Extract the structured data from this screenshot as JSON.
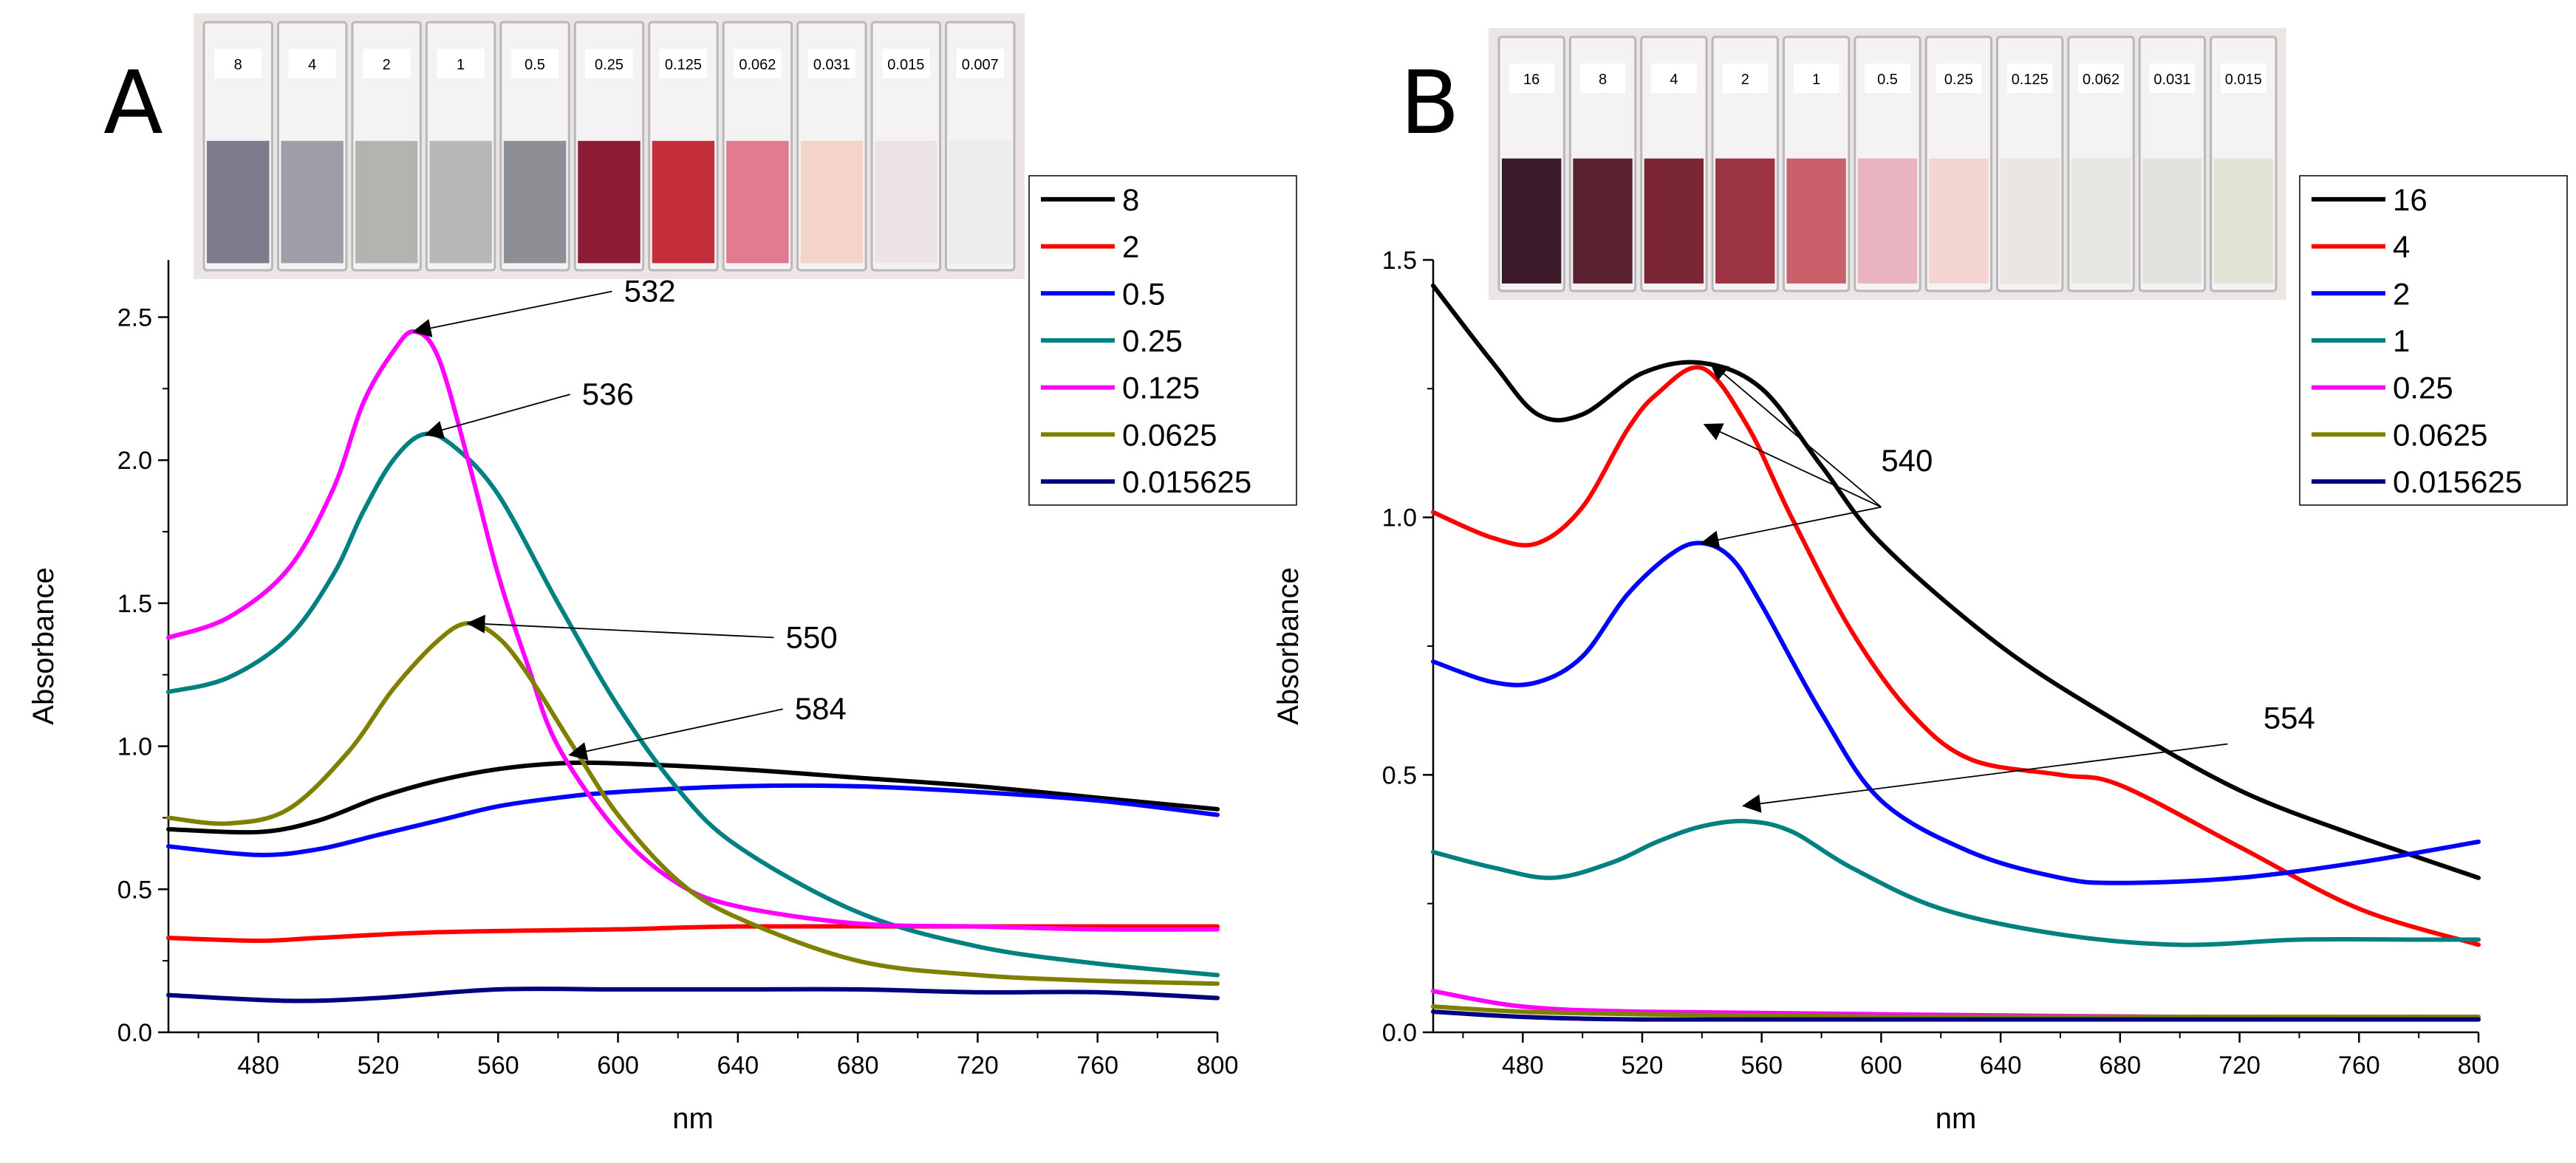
{
  "chart_data": [
    {
      "type": "line",
      "panel": "A",
      "xlabel": "nm",
      "ylabel": "Absorbance",
      "xlim": [
        450,
        800
      ],
      "ylim": [
        0,
        2.7
      ],
      "xticks": [
        480,
        520,
        560,
        600,
        640,
        680,
        720,
        760,
        800
      ],
      "yticks": [
        0.0,
        0.5,
        1.0,
        1.5,
        2.0,
        2.5
      ],
      "xtick_labels": [
        "480",
        "520",
        "560",
        "600",
        "640",
        "680",
        "720",
        "760",
        "800"
      ],
      "ytick_labels": [
        "0.0",
        "0.5",
        "1.0",
        "1.5",
        "2.0",
        "2.5"
      ],
      "cuvette_labels": [
        "8",
        "4",
        "2",
        "1",
        "0.5",
        "0.25",
        "0.125",
        "0.062",
        "0.031",
        "0.015",
        "0.007"
      ],
      "cuvette_colors": [
        "#7d7c8c",
        "#9e9ea6",
        "#b2b4b0",
        "#b6b8b6",
        "#8e8f94",
        "#8c1c34",
        "#c42d3a",
        "#e07b90",
        "#f3d3cc",
        "#ece4e4",
        "#ececec"
      ],
      "series": [
        {
          "name": "8",
          "color": "#000000",
          "x": [
            450,
            480,
            500,
            520,
            540,
            560,
            580,
            600,
            640,
            680,
            720,
            760,
            800
          ],
          "values": [
            0.71,
            0.7,
            0.74,
            0.82,
            0.88,
            0.92,
            0.94,
            0.94,
            0.92,
            0.89,
            0.86,
            0.82,
            0.78
          ]
        },
        {
          "name": "2",
          "color": "#ff0000",
          "x": [
            450,
            480,
            500,
            540,
            600,
            640,
            700,
            760,
            800
          ],
          "values": [
            0.33,
            0.32,
            0.33,
            0.35,
            0.36,
            0.37,
            0.37,
            0.37,
            0.37
          ]
        },
        {
          "name": "0.5",
          "color": "#0000ff",
          "x": [
            450,
            480,
            500,
            520,
            540,
            560,
            580,
            600,
            640,
            680,
            720,
            760,
            800
          ],
          "values": [
            0.65,
            0.62,
            0.64,
            0.69,
            0.74,
            0.79,
            0.82,
            0.84,
            0.86,
            0.86,
            0.84,
            0.81,
            0.76
          ]
        },
        {
          "name": "0.25",
          "color": "#008080",
          "x": [
            450,
            470,
            490,
            505,
            515,
            525,
            535,
            545,
            560,
            580,
            600,
            620,
            640,
            680,
            720,
            760,
            800
          ],
          "values": [
            1.19,
            1.24,
            1.38,
            1.6,
            1.82,
            2.0,
            2.09,
            2.05,
            1.88,
            1.5,
            1.14,
            0.85,
            0.65,
            0.42,
            0.3,
            0.24,
            0.2
          ]
        },
        {
          "name": "0.125",
          "color": "#ff00ff",
          "x": [
            450,
            470,
            490,
            505,
            515,
            525,
            532,
            540,
            550,
            560,
            570,
            580,
            600,
            620,
            640,
            680,
            720,
            760,
            800
          ],
          "values": [
            1.38,
            1.45,
            1.62,
            1.9,
            2.2,
            2.38,
            2.45,
            2.36,
            2.0,
            1.6,
            1.28,
            1.0,
            0.7,
            0.52,
            0.44,
            0.38,
            0.37,
            0.36,
            0.36
          ]
        },
        {
          "name": "0.0625",
          "color": "#808000",
          "x": [
            450,
            470,
            490,
            510,
            525,
            540,
            550,
            560,
            570,
            585,
            600,
            620,
            640,
            680,
            720,
            760,
            800
          ],
          "values": [
            0.75,
            0.73,
            0.78,
            0.98,
            1.2,
            1.37,
            1.43,
            1.38,
            1.25,
            1.0,
            0.76,
            0.53,
            0.4,
            0.25,
            0.2,
            0.18,
            0.17
          ]
        },
        {
          "name": "0.015625",
          "color": "#000080",
          "x": [
            450,
            490,
            520,
            560,
            600,
            640,
            680,
            720,
            760,
            800
          ],
          "values": [
            0.13,
            0.11,
            0.12,
            0.15,
            0.15,
            0.15,
            0.15,
            0.14,
            0.14,
            0.12
          ]
        }
      ],
      "annotations": [
        {
          "text": "532",
          "tip_x": 532,
          "tip_y": 2.45,
          "text_x": 598,
          "text_y": 2.59
        },
        {
          "text": "536",
          "tip_x": 536,
          "tip_y": 2.09,
          "text_x": 584,
          "text_y": 2.23
        },
        {
          "text": "550",
          "tip_x": 550,
          "tip_y": 1.43,
          "text_x": 652,
          "text_y": 1.38
        },
        {
          "text": "584",
          "tip_x": 584,
          "tip_y": 0.97,
          "text_x": 655,
          "text_y": 1.13
        }
      ]
    },
    {
      "type": "line",
      "panel": "B",
      "xlabel": "nm",
      "ylabel": "Absorbance",
      "xlim": [
        450,
        800
      ],
      "ylim": [
        0,
        1.5
      ],
      "xticks": [
        480,
        520,
        560,
        600,
        640,
        680,
        720,
        760,
        800
      ],
      "yticks": [
        0.0,
        0.5,
        1.0,
        1.5
      ],
      "xtick_labels": [
        "480",
        "520",
        "560",
        "600",
        "640",
        "680",
        "720",
        "760",
        "800"
      ],
      "ytick_labels": [
        "0.0",
        "0.5",
        "1.0",
        "1.5"
      ],
      "cuvette_labels": [
        "16",
        "8",
        "4",
        "2",
        "1",
        "0.5",
        "0.25",
        "0.125",
        "0.062",
        "0.031",
        "0.015"
      ],
      "cuvette_colors": [
        "#3a1a28",
        "#5c2130",
        "#7a2634",
        "#9c3444",
        "#c9606c",
        "#e8b3bf",
        "#f3d4d0",
        "#eae6e2",
        "#e6e6e0",
        "#e2e2de",
        "#e2e4d6"
      ],
      "series": [
        {
          "name": "16",
          "color": "#000000",
          "x": [
            450,
            470,
            485,
            500,
            520,
            540,
            560,
            580,
            600,
            640,
            680,
            720,
            760,
            800
          ],
          "values": [
            1.45,
            1.3,
            1.2,
            1.2,
            1.28,
            1.3,
            1.25,
            1.1,
            0.95,
            0.75,
            0.6,
            0.47,
            0.38,
            0.3
          ]
        },
        {
          "name": "4",
          "color": "#ff0000",
          "x": [
            450,
            470,
            485,
            500,
            515,
            525,
            540,
            555,
            570,
            590,
            610,
            630,
            660,
            680,
            720,
            760,
            800
          ],
          "values": [
            1.01,
            0.96,
            0.95,
            1.02,
            1.17,
            1.24,
            1.29,
            1.18,
            1.0,
            0.78,
            0.62,
            0.53,
            0.5,
            0.48,
            0.36,
            0.24,
            0.17
          ]
        },
        {
          "name": "2",
          "color": "#0000ff",
          "x": [
            450,
            470,
            485,
            500,
            515,
            530,
            540,
            550,
            560,
            580,
            600,
            630,
            660,
            680,
            720,
            760,
            800
          ],
          "values": [
            0.72,
            0.68,
            0.68,
            0.73,
            0.85,
            0.93,
            0.95,
            0.92,
            0.83,
            0.62,
            0.45,
            0.35,
            0.3,
            0.29,
            0.3,
            0.33,
            0.37
          ]
        },
        {
          "name": "1",
          "color": "#008080",
          "x": [
            450,
            470,
            490,
            510,
            525,
            540,
            555,
            570,
            590,
            620,
            660,
            700,
            740,
            780,
            800
          ],
          "values": [
            0.35,
            0.32,
            0.3,
            0.33,
            0.37,
            0.4,
            0.41,
            0.39,
            0.32,
            0.24,
            0.19,
            0.17,
            0.18,
            0.18,
            0.18
          ]
        },
        {
          "name": "0.25",
          "color": "#ff00ff",
          "x": [
            450,
            480,
            520,
            600,
            700,
            800
          ],
          "values": [
            0.08,
            0.05,
            0.04,
            0.035,
            0.03,
            0.03
          ]
        },
        {
          "name": "0.0625",
          "color": "#808000",
          "x": [
            450,
            480,
            520,
            600,
            700,
            800
          ],
          "values": [
            0.05,
            0.04,
            0.035,
            0.03,
            0.03,
            0.03
          ]
        },
        {
          "name": "0.015625",
          "color": "#000080",
          "x": [
            450,
            480,
            520,
            600,
            700,
            800
          ],
          "values": [
            0.04,
            0.03,
            0.025,
            0.025,
            0.025,
            0.025
          ]
        }
      ],
      "annotations": [
        {
          "text": "540",
          "text_x": 600,
          "text_y": 1.02,
          "text_pos": [
            598,
            1.11
          ],
          "arrows": [
            {
              "x": 543,
              "y": 1.3
            },
            {
              "x": 541,
              "y": 1.18
            },
            {
              "x": 540,
              "y": 0.95
            }
          ]
        },
        {
          "text": "554",
          "tip_x": 554,
          "tip_y": 0.44,
          "text_x": 716,
          "text_y": 0.56,
          "text_pos": [
            726,
            0.61
          ]
        }
      ]
    }
  ]
}
